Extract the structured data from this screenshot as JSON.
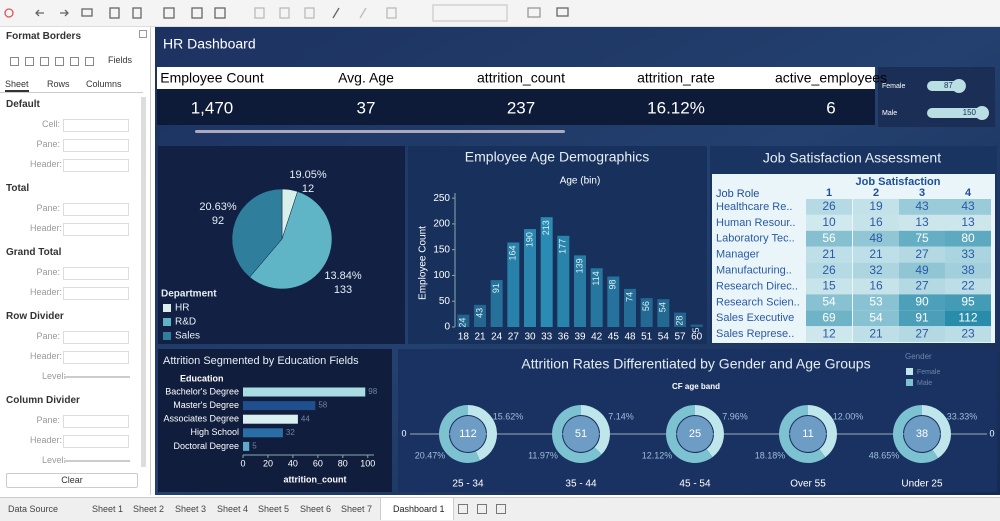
{
  "format_panel": {
    "title": "Format Borders",
    "fields": "Fields",
    "tabs": [
      "Sheet",
      "Rows",
      "Columns"
    ],
    "sections": [
      {
        "name": "Default",
        "rows": [
          "Cell:",
          "Pane:",
          "Header:"
        ]
      },
      {
        "name": "Total",
        "rows": [
          "Pane:",
          "Header:"
        ]
      },
      {
        "name": "Grand Total",
        "rows": [
          "Pane:",
          "Header:"
        ]
      },
      {
        "name": "Row Divider",
        "rows": [
          "Pane:",
          "Header:",
          "Level:"
        ]
      },
      {
        "name": "Column Divider",
        "rows": [
          "Pane:",
          "Header:",
          "Level:"
        ]
      }
    ],
    "clear": "Clear"
  },
  "dashboard": {
    "title": "HR Dashboard",
    "kpis": [
      {
        "label": "Employee Count",
        "value": "1,470"
      },
      {
        "label": "Avg. Age",
        "value": "37"
      },
      {
        "label": "attrition_count",
        "value": "237"
      },
      {
        "label": "attrition_rate",
        "value": "16.12%"
      },
      {
        "label": "active_employees",
        "value": "6"
      }
    ],
    "gender_chart": {
      "type": "bar",
      "categories": [
        "Female",
        "Male"
      ],
      "values": [
        87,
        150
      ],
      "color": "#b9dfe3"
    },
    "department_pie": {
      "type": "pie",
      "legend_title": "Department",
      "categories": [
        "HR",
        "R&D",
        "Sales"
      ],
      "values": [
        12,
        133,
        92
      ],
      "rate_labels": [
        "19.05%",
        "13.84%",
        "20.63%"
      ],
      "colors": [
        "#d9efe9",
        "#5fb4c6",
        "#2f7f9c"
      ]
    },
    "age_chart": {
      "type": "bar",
      "title": "Employee Age Demographics",
      "subtitle": "Age (bin)",
      "y_label": "Employee Count",
      "categories": [
        18,
        21,
        24,
        27,
        30,
        33,
        36,
        39,
        42,
        45,
        48,
        51,
        54,
        57,
        60
      ],
      "values": [
        24,
        43,
        91,
        164,
        190,
        213,
        177,
        139,
        114,
        98,
        74,
        56,
        54,
        28,
        5
      ],
      "ylim": [
        0,
        260
      ],
      "yticks": [
        0,
        50,
        100,
        150,
        200,
        250
      ],
      "color": "#2b8cb3"
    },
    "job_satisfaction": {
      "title": "Job Satisfaction Assessment",
      "column_header": "Job Satisfaction",
      "row_header": "Job Role",
      "columns": [
        1,
        2,
        3,
        4
      ],
      "rows": [
        {
          "role": "Healthcare Re..",
          "values": [
            26,
            19,
            43,
            43
          ]
        },
        {
          "role": "Human Resour..",
          "values": [
            10,
            16,
            13,
            13
          ]
        },
        {
          "role": "Laboratory Tec..",
          "values": [
            56,
            48,
            75,
            80
          ]
        },
        {
          "role": "Manager",
          "values": [
            21,
            21,
            27,
            33
          ]
        },
        {
          "role": "Manufacturing..",
          "values": [
            26,
            32,
            49,
            38
          ]
        },
        {
          "role": "Research Direc..",
          "values": [
            15,
            16,
            27,
            22
          ]
        },
        {
          "role": "Research Scien..",
          "values": [
            54,
            53,
            90,
            95
          ]
        },
        {
          "role": "Sales Executive",
          "values": [
            69,
            54,
            91,
            112
          ]
        },
        {
          "role": "Sales Represe..",
          "values": [
            12,
            21,
            27,
            23
          ]
        }
      ]
    },
    "education_chart": {
      "type": "bar",
      "title": "Attrition Segmented by Education Fields",
      "axis_header": "Education",
      "x_label": "attrition_count",
      "categories": [
        "Bachelor's Degree",
        "Master's Degree",
        "Associates Degree",
        "High School",
        "Doctoral Degree"
      ],
      "values": [
        98,
        58,
        44,
        32,
        5
      ],
      "xlim": [
        0,
        105
      ],
      "xticks": [
        0,
        20,
        40,
        60,
        80,
        100
      ],
      "colors": [
        "#a9dde3",
        "#1f4f8f",
        "#d9eef0",
        "#2a6ea8",
        "#5fa9c9"
      ]
    },
    "attrition_donuts": {
      "type": "donut",
      "title": "Attrition Rates Differentiated by Gender and Age Groups",
      "subtitle": "CF age band",
      "legend_title": "Gender",
      "legend": [
        "Female",
        "Male"
      ],
      "colors": [
        "#bfe6ea",
        "#7cc2d1"
      ],
      "axis_zero": 0,
      "groups": [
        {
          "name": "25 - 34",
          "count": 112,
          "female": 15.62,
          "female_label": "15.62%",
          "male": 20.47,
          "male_label": "20.47%"
        },
        {
          "name": "35 - 44",
          "count": 51,
          "female": 7.14,
          "female_label": "7.14%",
          "male": 11.97,
          "male_label": "11.97%"
        },
        {
          "name": "45 - 54",
          "count": 25,
          "female": 7.96,
          "female_label": "7.96%",
          "male": 12.12,
          "male_label": "12.12%"
        },
        {
          "name": "Over 55",
          "count": 11,
          "female": 12.0,
          "female_label": "12.00%",
          "male": 18.18,
          "male_label": "18.18%"
        },
        {
          "name": "Under 25",
          "count": 38,
          "female": 33.33,
          "female_label": "33.33%",
          "male": 48.65,
          "male_label": "48.65%"
        }
      ]
    }
  },
  "sheet_tabs": [
    "Data Source",
    "Sheet 1",
    "Sheet 2",
    "Sheet 3",
    "Sheet 4",
    "Sheet 5",
    "Sheet 6",
    "Sheet 7",
    "Dashboard 1"
  ]
}
